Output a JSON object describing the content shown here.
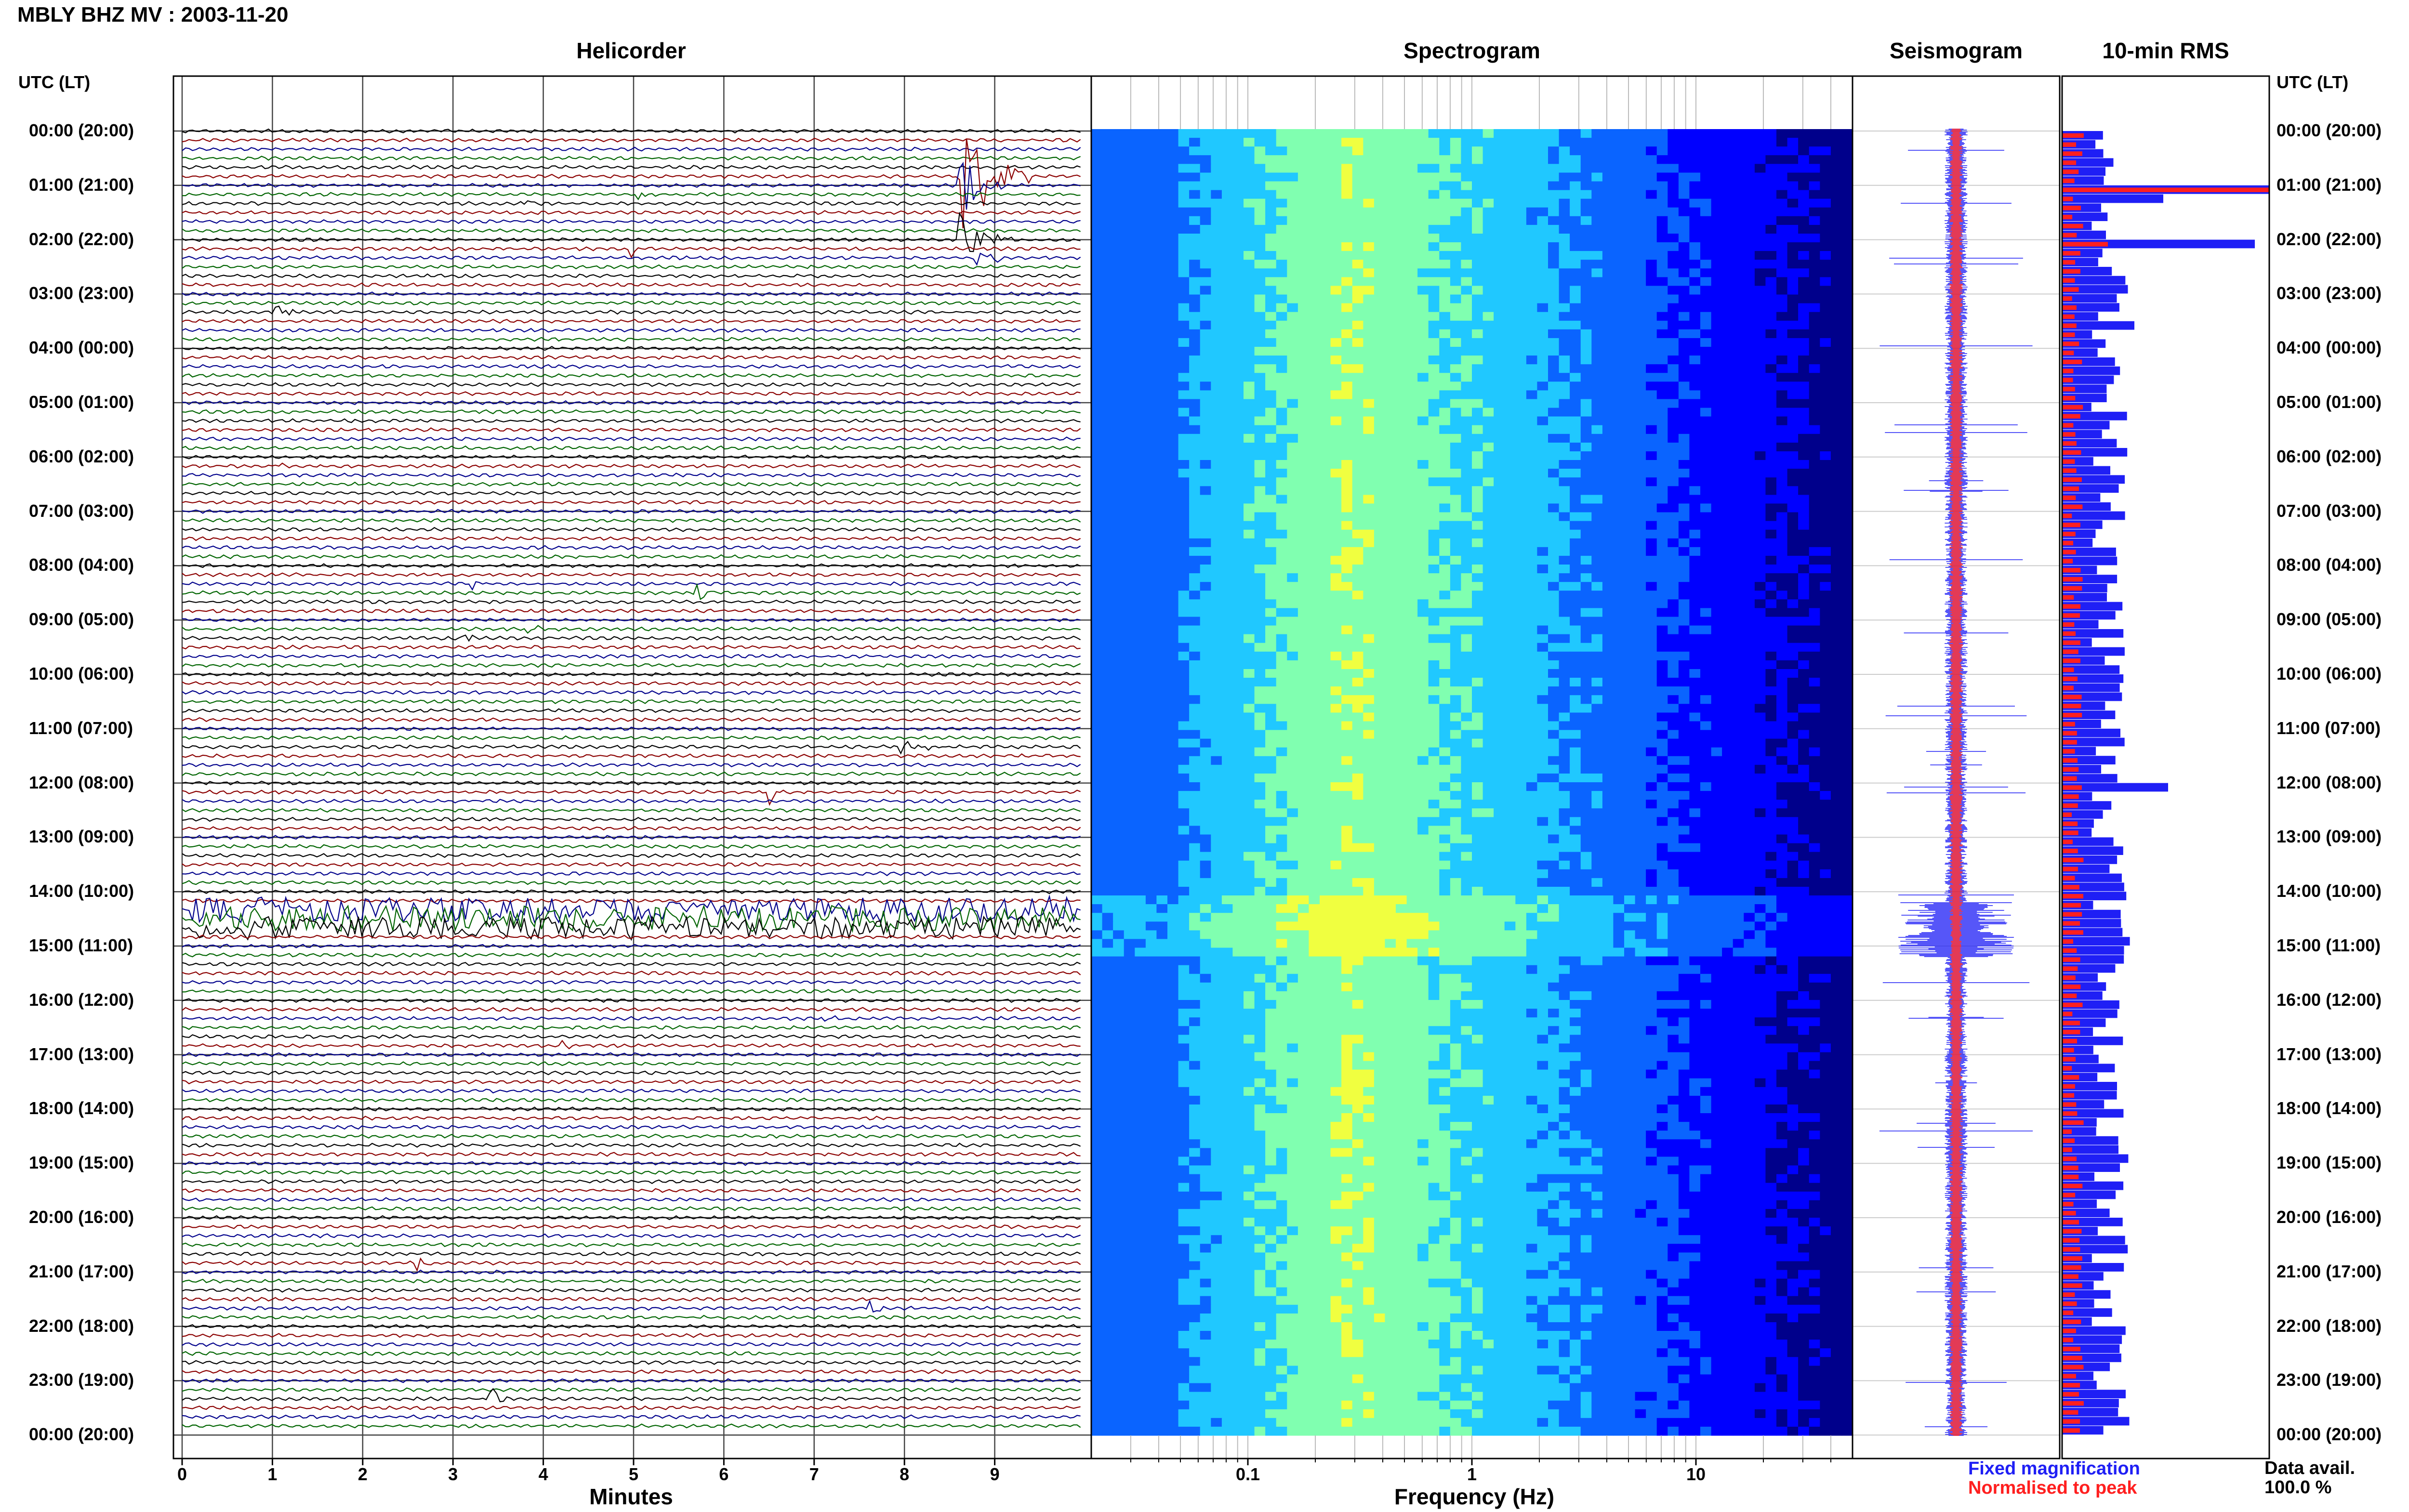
{
  "header": {
    "title": "MBLY BHZ MV : 2003-11-20"
  },
  "panels": {
    "helicorder": "Helicorder",
    "spectrogram": "Spectrogram",
    "seismogram": "Seismogram",
    "rms": "10-min RMS"
  },
  "axes": {
    "left_time_header": "UTC (LT)",
    "right_time_header": "UTC (LT)",
    "helicorder_xlabel": "Minutes",
    "spectrogram_xlabel": "Frequency (Hz)"
  },
  "legend": {
    "fixed": "Fixed magnification",
    "normalised": "Normalised to peak"
  },
  "availability": {
    "label": "Data avail.",
    "value": "100.0 %"
  },
  "chart_data": [
    {
      "type": "line",
      "title": "Helicorder",
      "xlabel": "Minutes",
      "x_ticks": [
        "0",
        "1",
        "2",
        "3",
        "4",
        "5",
        "6",
        "7",
        "8",
        "9"
      ],
      "xlim": [
        0,
        10
      ],
      "trace_colors": [
        "#000000",
        "#8b0000",
        "#00008b",
        "#006400"
      ],
      "rows_per_hour": 6,
      "time_labels": [
        "00:00 (20:00)",
        "01:00 (21:00)",
        "02:00 (22:00)",
        "03:00 (23:00)",
        "04:00 (00:00)",
        "05:00 (01:00)",
        "06:00 (02:00)",
        "07:00 (03:00)",
        "08:00 (04:00)",
        "09:00 (05:00)",
        "10:00 (06:00)",
        "11:00 (07:00)",
        "12:00 (08:00)",
        "13:00 (09:00)",
        "14:00 (10:00)",
        "15:00 (11:00)",
        "16:00 (12:00)",
        "17:00 (13:00)",
        "18:00 (14:00)",
        "19:00 (15:00)",
        "20:00 (16:00)",
        "21:00 (17:00)",
        "22:00 (18:00)",
        "23:00 (19:00)",
        "00:00 (20:00)"
      ]
    },
    {
      "type": "heatmap",
      "title": "Spectrogram",
      "xlabel": "Frequency (Hz)",
      "x_scale": "log",
      "xlim": [
        0.02,
        50
      ],
      "x_ticks": [
        "0.1",
        "1",
        "10"
      ],
      "colormap": [
        "#00008b",
        "#0000ff",
        "#0a64ff",
        "#20c8ff",
        "#80ffb0",
        "#f0ff40"
      ]
    },
    {
      "type": "line",
      "title": "Seismogram",
      "series": [
        {
          "name": "Fixed magnification",
          "color": "#1f1ff5"
        },
        {
          "name": "Normalised to peak",
          "color": "#ff1f1f"
        }
      ]
    },
    {
      "type": "bar",
      "title": "10-min RMS",
      "series": [
        {
          "name": "Fixed magnification",
          "color": "#1f1ff5"
        },
        {
          "name": "Normalised to peak",
          "color": "#ff1f1f"
        }
      ],
      "bars_per_hour": 6,
      "note_peaks_hours": [
        1.0,
        2.0,
        3.5,
        12.0,
        14.4,
        23.0
      ]
    }
  ]
}
